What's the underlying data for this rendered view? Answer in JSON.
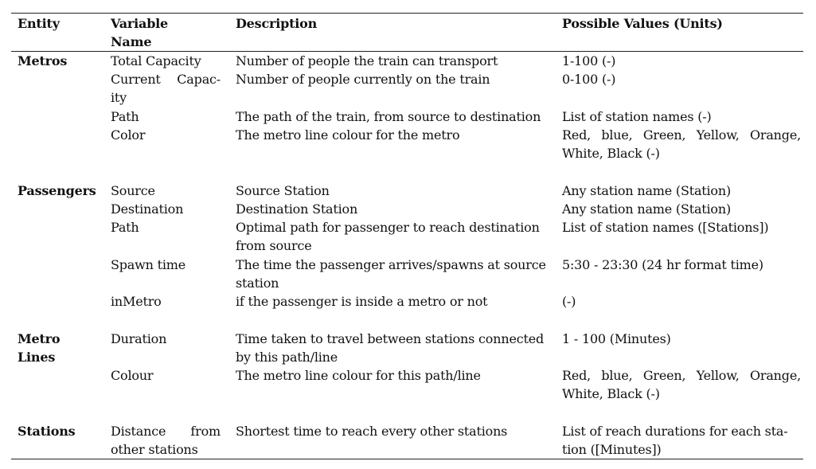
{
  "header": {
    "entity": "Entity",
    "variable_line1": "Variable",
    "variable_line2": "Name",
    "description": "Description",
    "values": "Possible Values (Units)"
  },
  "groups": {
    "metros": {
      "entity": "Metros",
      "rows": [
        {
          "var": "Total Capacity",
          "desc": "Number of people the train can transport",
          "val": "1-100 (-)"
        },
        {
          "var_l1a": "Current",
          "var_l1b": "Capac-",
          "var_l2": "ity",
          "desc": "Number of people currently on the train",
          "val": "0-100 (-)"
        },
        {
          "var": "Path",
          "desc": "The path of the train, from source to destination",
          "val": "List of station names (-)"
        },
        {
          "var": "Color",
          "desc": "The metro line colour for the metro",
          "val_l1a": "Red,",
          "val_l1b": "blue,",
          "val_l1c": "Green,",
          "val_l1d": "Yellow,",
          "val_l1e": "Orange,",
          "val_l2": "White, Black (-)"
        }
      ]
    },
    "passengers": {
      "entity": "Passengers",
      "rows": [
        {
          "var": "Source",
          "desc": "Source Station",
          "val": "Any station name (Station)"
        },
        {
          "var": "Destination",
          "desc": "Destination Station",
          "val": "Any station name (Station)"
        },
        {
          "var": "Path",
          "desc_l1": "Optimal path for passenger to reach destination",
          "desc_l2": "from source",
          "val": "List of station names ([Stations])"
        },
        {
          "var": "Spawn time",
          "desc_l1": "The time the passenger arrives/spawns at source",
          "desc_l2": "station",
          "val": "5:30 - 23:30 (24 hr format time)"
        },
        {
          "var": "inMetro",
          "desc": "if the passenger is inside a metro or not",
          "val": "(-)"
        }
      ]
    },
    "metro_lines": {
      "entity_l1": "Metro",
      "entity_l2": "Lines",
      "rows": [
        {
          "var": "Duration",
          "desc_l1": "Time taken to travel between stations connected",
          "desc_l2": "by this path/line",
          "val": "1 - 100 (Minutes)"
        },
        {
          "var": "Colour",
          "desc": "The metro line colour for this path/line",
          "val_l1a": "Red,",
          "val_l1b": "blue,",
          "val_l1c": "Green,",
          "val_l1d": "Yellow,",
          "val_l1e": "Orange,",
          "val_l2": "White, Black (-)"
        }
      ]
    },
    "stations": {
      "entity": "Stations",
      "rows": [
        {
          "var_l1a": "Distance",
          "var_l1b": "from",
          "var_l2": "other stations",
          "desc": "Shortest time to reach every other stations",
          "val_l1": "List of reach durations for each sta-",
          "val_l2": "tion ([Minutes])"
        }
      ]
    }
  }
}
